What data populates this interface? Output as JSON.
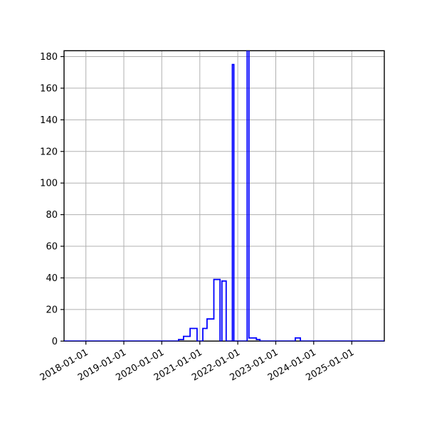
{
  "figure": {
    "background": "#ffffff"
  },
  "chart_data": {
    "type": "line",
    "step": "post",
    "title": "",
    "xlabel": "",
    "ylabel": "",
    "legend": null,
    "grid": true,
    "grid_color": "#b0b0b0",
    "axis_color": "#000000",
    "line_color": "#0000ff",
    "line_width": 1.8,
    "x_tick_labels": [
      "2018-01-01",
      "2019-01-01",
      "2020-01-01",
      "2021-01-01",
      "2022-01-01",
      "2023-01-01",
      "2024-01-01",
      "2025-01-01"
    ],
    "y_ticks": [
      0,
      20,
      40,
      60,
      80,
      100,
      120,
      140,
      160,
      180
    ],
    "y_tick_labels": [
      "0",
      "20",
      "40",
      "60",
      "80",
      "100",
      "120",
      "140",
      "160",
      "180"
    ],
    "xlim": [
      "2017-06-05",
      "2025-11-10"
    ],
    "ylim": [
      0,
      183.7
    ],
    "points": [
      [
        "2017-06-05",
        0
      ],
      [
        "2020-06-10",
        1
      ],
      [
        "2020-07-28",
        3
      ],
      [
        "2020-09-29",
        8
      ],
      [
        "2020-12-05",
        0
      ],
      [
        "2021-01-30",
        8
      ],
      [
        "2021-03-11",
        14
      ],
      [
        "2021-05-16",
        39
      ],
      [
        "2021-07-14",
        0
      ],
      [
        "2021-08-01",
        38
      ],
      [
        "2021-09-11",
        0
      ],
      [
        "2021-11-10",
        175
      ],
      [
        "2021-11-24",
        0
      ],
      [
        "2022-04-01",
        185
      ],
      [
        "2022-04-18",
        2
      ],
      [
        "2022-06-29",
        1
      ],
      [
        "2022-08-02",
        0
      ],
      [
        "2023-07-08",
        2
      ],
      [
        "2023-08-26",
        0
      ],
      [
        "2025-11-10",
        0
      ]
    ]
  }
}
